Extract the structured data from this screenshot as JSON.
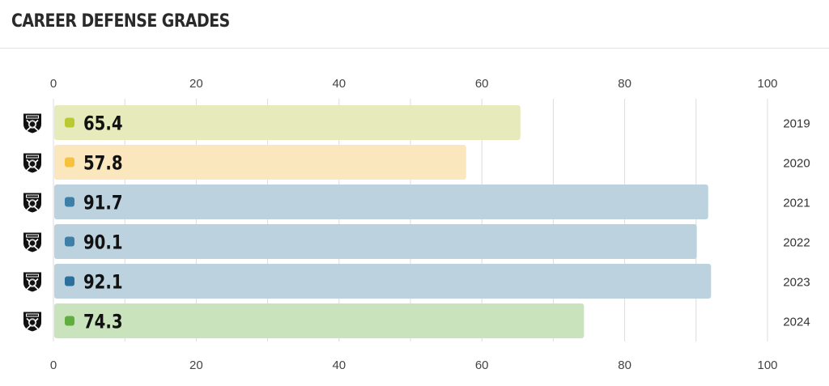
{
  "header": {
    "title": "CAREER DEFENSE GRADES"
  },
  "colors": {
    "grid": "#dcdcdc",
    "logo_bg": "#111111"
  },
  "chart_data": {
    "type": "bar",
    "orientation": "horizontal",
    "title": "CAREER DEFENSE GRADES",
    "xlim": [
      0,
      100
    ],
    "x_ticks": [
      0,
      20,
      40,
      60,
      80,
      100
    ],
    "axis_labels_top_and_bottom": true,
    "grid": true,
    "categories": [
      "2019",
      "2020",
      "2021",
      "2022",
      "2023",
      "2024"
    ],
    "values": [
      65.4,
      57.8,
      91.7,
      90.1,
      92.1,
      74.3
    ],
    "value_labels": [
      "65.4",
      "57.8",
      "91.7",
      "90.1",
      "92.1",
      "74.3"
    ],
    "bar_colors": [
      "#e7ebbb",
      "#fbe7bd",
      "#bcd3df",
      "#bcd3df",
      "#bcd3df",
      "#c9e4bc"
    ],
    "dot_colors": [
      "#b9c932",
      "#f6c23c",
      "#3d7fa6",
      "#3d7fa6",
      "#2c6f9c",
      "#5fae3e"
    ],
    "team_logo": "raiders-logo-icon"
  }
}
